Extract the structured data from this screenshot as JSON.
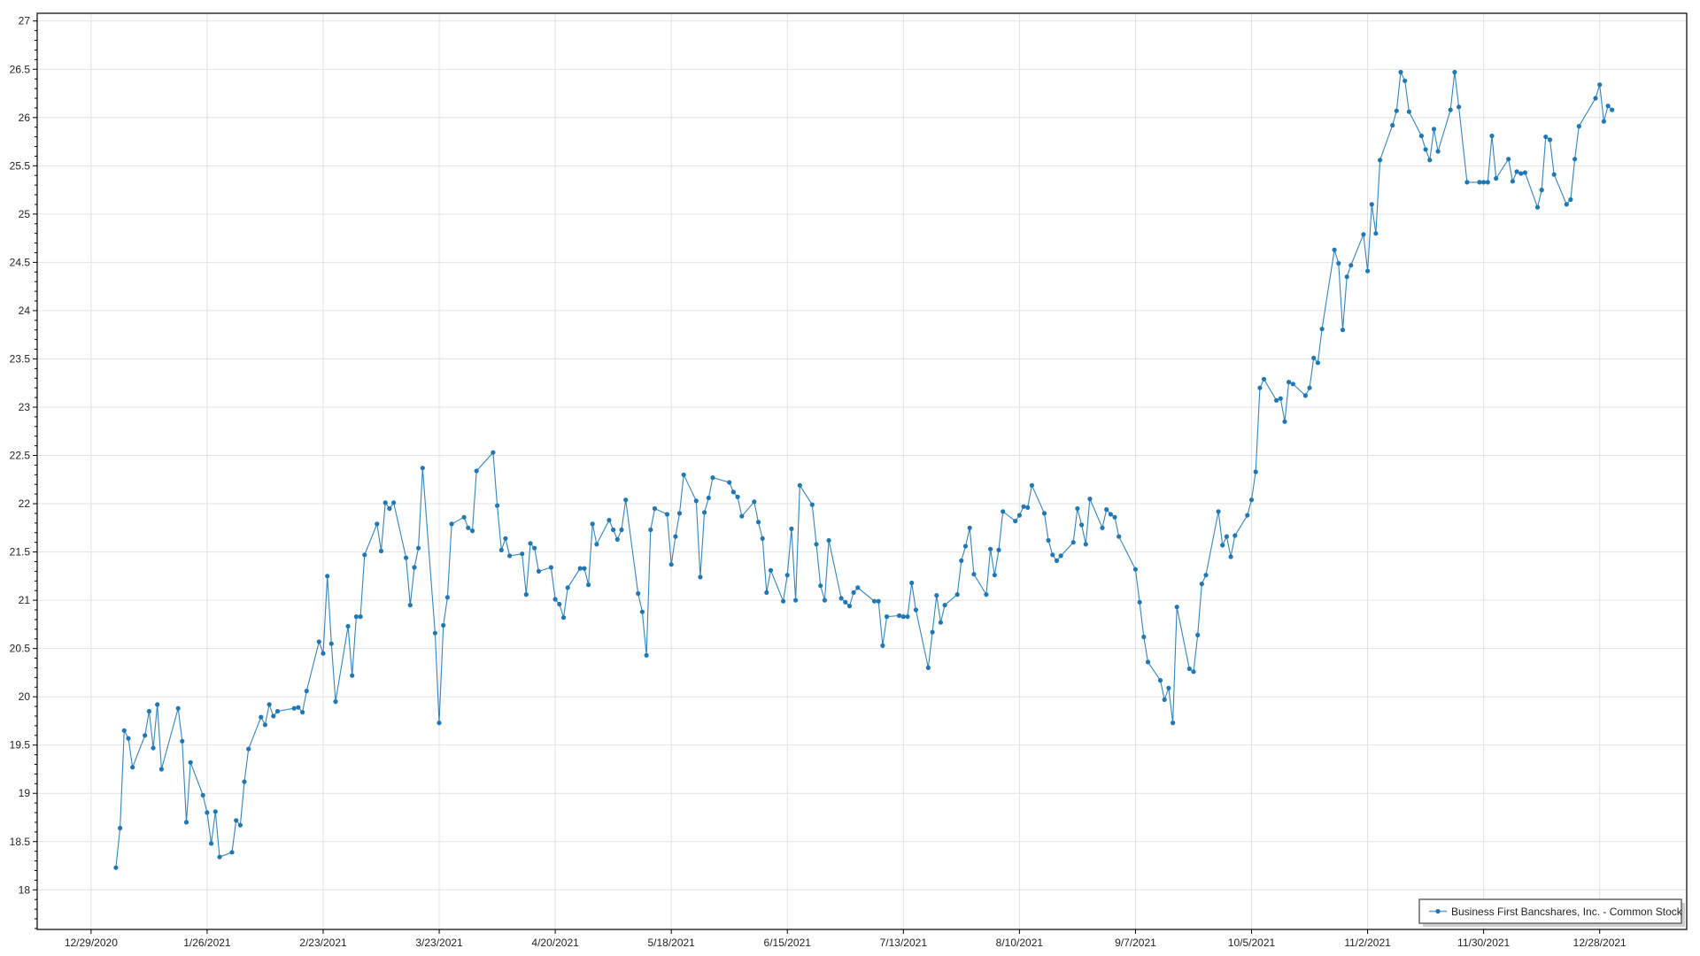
{
  "chart_data": {
    "type": "line",
    "title": "",
    "xlabel": "",
    "ylabel": "",
    "xlim": [
      "2020-12-16",
      "2022-01-18"
    ],
    "ylim": [
      17.59,
      27.08
    ],
    "grid": true,
    "legend_position": "bottom-right",
    "x_tick_labels": [
      "12/29/2020",
      "1/26/2021",
      "2/23/2021",
      "3/23/2021",
      "4/20/2021",
      "5/18/2021",
      "6/15/2021",
      "7/13/2021",
      "8/10/2021",
      "9/7/2021",
      "10/5/2021",
      "11/2/2021",
      "11/30/2021",
      "12/28/2021"
    ],
    "x_ticks": [
      "2020-12-29",
      "2021-01-26",
      "2021-02-23",
      "2021-03-23",
      "2021-04-20",
      "2021-05-18",
      "2021-06-15",
      "2021-07-13",
      "2021-08-10",
      "2021-09-07",
      "2021-10-05",
      "2021-11-02",
      "2021-11-30",
      "2021-12-28"
    ],
    "y_tick_labels": [
      "18",
      "18.5",
      "19",
      "19.5",
      "20",
      "20.5",
      "21",
      "21.5",
      "22",
      "22.5",
      "23",
      "23.5",
      "24",
      "24.5",
      "25",
      "25.5",
      "26",
      "26.5",
      "27"
    ],
    "y_ticks": [
      18,
      18.5,
      19,
      19.5,
      20,
      20.5,
      21,
      21.5,
      22,
      22.5,
      23,
      23.5,
      24,
      24.5,
      25,
      25.5,
      26,
      26.5,
      27
    ],
    "series": [
      {
        "name": "Business First Bancshares, Inc. - Common Stock",
        "color": "#1f77b4",
        "marker": "circle",
        "x": [
          "2021-01-04",
          "2021-01-05",
          "2021-01-06",
          "2021-01-07",
          "2021-01-08",
          "2021-01-11",
          "2021-01-12",
          "2021-01-13",
          "2021-01-14",
          "2021-01-15",
          "2021-01-19",
          "2021-01-20",
          "2021-01-21",
          "2021-01-22",
          "2021-01-25",
          "2021-01-26",
          "2021-01-27",
          "2021-01-28",
          "2021-01-29",
          "2021-02-01",
          "2021-02-02",
          "2021-02-03",
          "2021-02-04",
          "2021-02-05",
          "2021-02-08",
          "2021-02-09",
          "2021-02-10",
          "2021-02-11",
          "2021-02-12",
          "2021-02-16",
          "2021-02-17",
          "2021-02-18",
          "2021-02-19",
          "2021-02-22",
          "2021-02-23",
          "2021-02-24",
          "2021-02-25",
          "2021-02-26",
          "2021-03-01",
          "2021-03-02",
          "2021-03-03",
          "2021-03-04",
          "2021-03-05",
          "2021-03-08",
          "2021-03-09",
          "2021-03-10",
          "2021-03-11",
          "2021-03-12",
          "2021-03-15",
          "2021-03-16",
          "2021-03-17",
          "2021-03-18",
          "2021-03-19",
          "2021-03-22",
          "2021-03-23",
          "2021-03-24",
          "2021-03-25",
          "2021-03-26",
          "2021-03-29",
          "2021-03-30",
          "2021-03-31",
          "2021-04-01",
          "2021-04-05",
          "2021-04-06",
          "2021-04-07",
          "2021-04-08",
          "2021-04-09",
          "2021-04-12",
          "2021-04-13",
          "2021-04-14",
          "2021-04-15",
          "2021-04-16",
          "2021-04-19",
          "2021-04-20",
          "2021-04-21",
          "2021-04-22",
          "2021-04-23",
          "2021-04-26",
          "2021-04-27",
          "2021-04-28",
          "2021-04-29",
          "2021-04-30",
          "2021-05-03",
          "2021-05-04",
          "2021-05-05",
          "2021-05-06",
          "2021-05-07",
          "2021-05-10",
          "2021-05-11",
          "2021-05-12",
          "2021-05-13",
          "2021-05-14",
          "2021-05-17",
          "2021-05-18",
          "2021-05-19",
          "2021-05-20",
          "2021-05-21",
          "2021-05-24",
          "2021-05-25",
          "2021-05-26",
          "2021-05-27",
          "2021-05-28",
          "2021-06-01",
          "2021-06-02",
          "2021-06-03",
          "2021-06-04",
          "2021-06-07",
          "2021-06-08",
          "2021-06-09",
          "2021-06-10",
          "2021-06-11",
          "2021-06-14",
          "2021-06-15",
          "2021-06-16",
          "2021-06-17",
          "2021-06-18",
          "2021-06-21",
          "2021-06-22",
          "2021-06-23",
          "2021-06-24",
          "2021-06-25",
          "2021-06-28",
          "2021-06-29",
          "2021-06-30",
          "2021-07-01",
          "2021-07-02",
          "2021-07-06",
          "2021-07-07",
          "2021-07-08",
          "2021-07-09",
          "2021-07-12",
          "2021-07-13",
          "2021-07-14",
          "2021-07-15",
          "2021-07-16",
          "2021-07-19",
          "2021-07-20",
          "2021-07-21",
          "2021-07-22",
          "2021-07-23",
          "2021-07-26",
          "2021-07-27",
          "2021-07-28",
          "2021-07-29",
          "2021-07-30",
          "2021-08-02",
          "2021-08-03",
          "2021-08-04",
          "2021-08-05",
          "2021-08-06",
          "2021-08-09",
          "2021-08-10",
          "2021-08-11",
          "2021-08-12",
          "2021-08-13",
          "2021-08-16",
          "2021-08-17",
          "2021-08-18",
          "2021-08-19",
          "2021-08-20",
          "2021-08-23",
          "2021-08-24",
          "2021-08-25",
          "2021-08-26",
          "2021-08-27",
          "2021-08-30",
          "2021-08-31",
          "2021-09-01",
          "2021-09-02",
          "2021-09-03",
          "2021-09-07",
          "2021-09-08",
          "2021-09-09",
          "2021-09-10",
          "2021-09-13",
          "2021-09-14",
          "2021-09-15",
          "2021-09-16",
          "2021-09-17",
          "2021-09-20",
          "2021-09-21",
          "2021-09-22",
          "2021-09-23",
          "2021-09-24",
          "2021-09-27",
          "2021-09-28",
          "2021-09-29",
          "2021-09-30",
          "2021-10-01",
          "2021-10-04",
          "2021-10-05",
          "2021-10-06",
          "2021-10-07",
          "2021-10-08",
          "2021-10-11",
          "2021-10-12",
          "2021-10-13",
          "2021-10-14",
          "2021-10-15",
          "2021-10-18",
          "2021-10-19",
          "2021-10-20",
          "2021-10-21",
          "2021-10-22",
          "2021-10-25",
          "2021-10-26",
          "2021-10-27",
          "2021-10-28",
          "2021-10-29",
          "2021-11-01",
          "2021-11-02",
          "2021-11-03",
          "2021-11-04",
          "2021-11-05",
          "2021-11-08",
          "2021-11-09",
          "2021-11-10",
          "2021-11-11",
          "2021-11-12",
          "2021-11-15",
          "2021-11-16",
          "2021-11-17",
          "2021-11-18",
          "2021-11-19",
          "2021-11-22",
          "2021-11-23",
          "2021-11-24",
          "2021-11-26",
          "2021-11-29",
          "2021-11-30",
          "2021-12-01",
          "2021-12-02",
          "2021-12-03",
          "2021-12-06",
          "2021-12-07",
          "2021-12-08",
          "2021-12-09",
          "2021-12-10",
          "2021-12-13",
          "2021-12-14",
          "2021-12-15",
          "2021-12-16",
          "2021-12-17",
          "2021-12-20",
          "2021-12-21",
          "2021-12-22",
          "2021-12-23",
          "2021-12-27",
          "2021-12-28",
          "2021-12-29",
          "2021-12-30",
          "2021-12-31"
        ],
        "y": [
          18.23,
          18.64,
          19.65,
          19.57,
          19.27,
          19.6,
          19.85,
          19.47,
          19.92,
          19.25,
          19.88,
          19.54,
          18.7,
          19.32,
          18.98,
          18.8,
          18.48,
          18.81,
          18.34,
          18.39,
          18.72,
          18.67,
          19.12,
          19.46,
          19.79,
          19.71,
          19.92,
          19.8,
          19.85,
          19.88,
          19.89,
          19.84,
          20.06,
          20.57,
          20.45,
          21.25,
          20.55,
          19.95,
          20.73,
          20.22,
          20.83,
          20.83,
          21.47,
          21.79,
          21.51,
          22.01,
          21.95,
          22.01,
          21.44,
          20.95,
          21.34,
          21.54,
          22.37,
          20.66,
          19.73,
          20.74,
          21.03,
          21.79,
          21.86,
          21.75,
          21.72,
          22.34,
          22.53,
          21.98,
          21.52,
          21.64,
          21.46,
          21.48,
          21.06,
          21.59,
          21.54,
          21.3,
          21.34,
          21.01,
          20.96,
          20.82,
          21.13,
          21.33,
          21.33,
          21.16,
          21.79,
          21.58,
          21.83,
          21.73,
          21.63,
          21.73,
          22.04,
          21.07,
          20.88,
          20.43,
          21.73,
          21.95,
          21.89,
          21.37,
          21.66,
          21.9,
          22.3,
          22.03,
          21.24,
          21.91,
          22.06,
          22.27,
          22.22,
          22.12,
          22.07,
          21.87,
          22.02,
          21.81,
          21.64,
          21.08,
          21.31,
          20.99,
          21.26,
          21.74,
          21.0,
          22.19,
          21.99,
          21.58,
          21.15,
          21.0,
          21.62,
          21.02,
          20.98,
          20.94,
          21.08,
          21.13,
          20.99,
          20.99,
          20.53,
          20.83,
          20.84,
          20.83,
          20.83,
          21.18,
          20.9,
          20.3,
          20.67,
          21.05,
          20.77,
          20.95,
          21.06,
          21.41,
          21.56,
          21.75,
          21.27,
          21.06,
          21.53,
          21.26,
          21.52,
          21.92,
          21.82,
          21.88,
          21.97,
          21.96,
          22.19,
          21.9,
          21.62,
          21.47,
          21.41,
          21.46,
          21.6,
          21.95,
          21.78,
          21.58,
          22.05,
          21.75,
          21.94,
          21.89,
          21.86,
          21.66,
          21.32,
          20.98,
          20.62,
          20.36,
          20.17,
          19.97,
          20.09,
          19.73,
          20.93,
          20.29,
          20.26,
          20.64,
          21.17,
          21.26,
          21.92,
          21.57,
          21.66,
          21.45,
          21.67,
          21.88,
          22.04,
          22.33,
          23.2,
          23.29,
          23.07,
          23.09,
          22.85,
          23.26,
          23.24,
          23.12,
          23.2,
          23.51,
          23.46,
          23.81,
          24.63,
          24.49,
          23.8,
          24.35,
          24.47,
          24.79,
          24.41,
          25.1,
          24.8,
          25.56,
          25.92,
          26.07,
          26.47,
          26.38,
          26.06,
          25.81,
          25.67,
          25.56,
          25.88,
          25.65,
          26.08,
          26.47,
          26.11,
          25.33,
          25.33,
          25.33,
          25.33,
          25.81,
          25.37,
          25.57,
          25.34,
          25.44,
          25.42,
          25.43,
          25.07,
          25.25,
          25.8,
          25.77,
          25.41,
          25.1,
          25.15,
          25.57,
          25.91,
          26.2,
          26.34,
          25.96,
          26.12,
          26.08
        ]
      }
    ]
  }
}
